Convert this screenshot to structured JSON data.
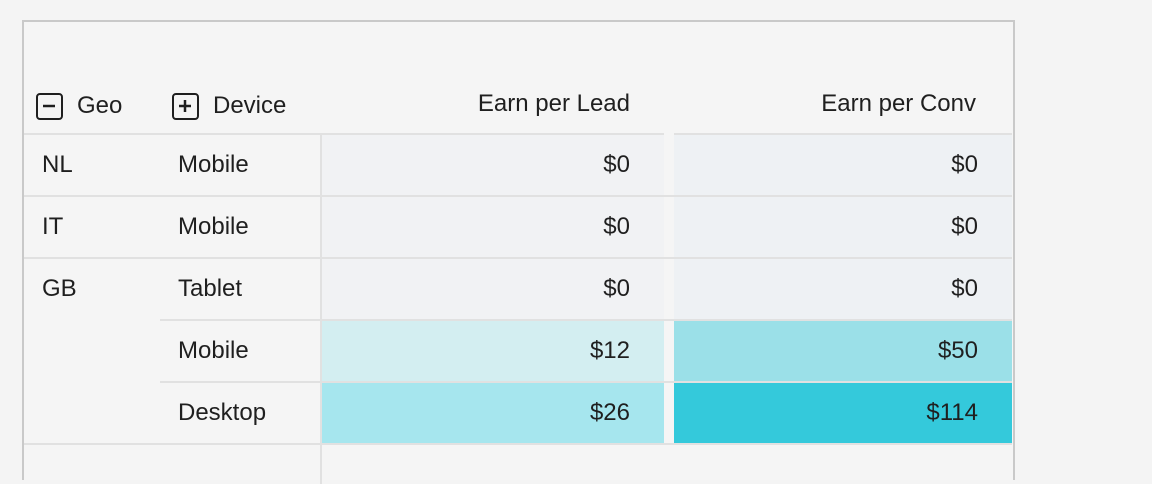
{
  "header": {
    "geo_label": "Geo",
    "device_label": "Device",
    "metric1_label": "Earn per Lead",
    "metric2_label": "Earn per Conv",
    "geo_toggle_icon": "minus-square-icon",
    "device_toggle_icon": "plus-square-icon"
  },
  "rows": [
    {
      "geo": "NL",
      "device": "Mobile",
      "lead": "$0",
      "conv": "$0",
      "lead_color": "#f1f2f4",
      "conv_color": "#eef1f4"
    },
    {
      "geo": "IT",
      "device": "Mobile",
      "lead": "$0",
      "conv": "$0",
      "lead_color": "#f1f2f4",
      "conv_color": "#eef1f4"
    },
    {
      "geo": "GB",
      "device": "Tablet",
      "lead": "$0",
      "conv": "$0",
      "lead_color": "#f1f2f4",
      "conv_color": "#eef1f4"
    },
    {
      "geo": "",
      "device": "Mobile",
      "lead": "$12",
      "conv": "$50",
      "lead_color": "#d3eef1",
      "conv_color": "#9be0e8"
    },
    {
      "geo": "",
      "device": "Desktop",
      "lead": "$26",
      "conv": "$114",
      "lead_color": "#a6e6ee",
      "conv_color": "#34c9db"
    }
  ]
}
